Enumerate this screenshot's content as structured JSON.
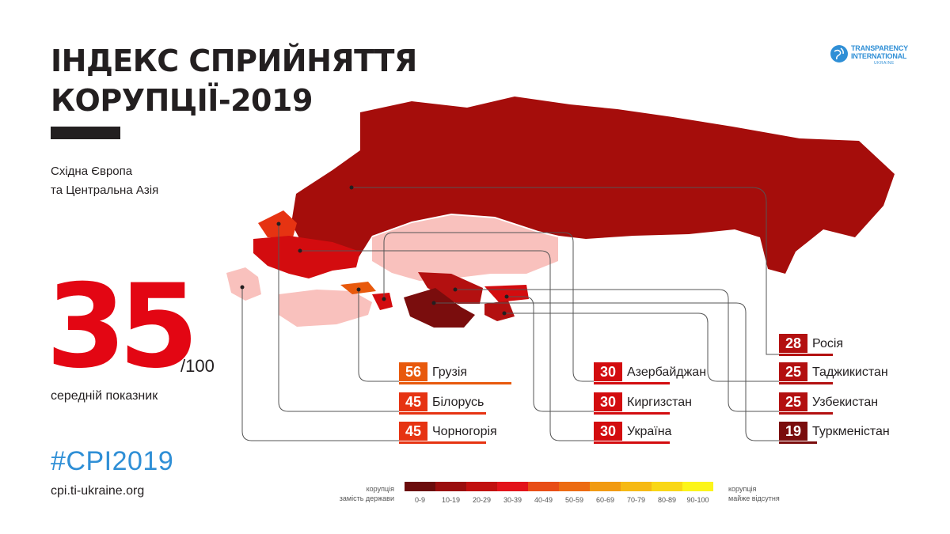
{
  "title": {
    "line1": "ІНДЕКС СПРИЙНЯТТЯ",
    "line2": "КОРУПЦІЇ-2019"
  },
  "region": {
    "line1": "Східна Європа",
    "line2": "та Центральна Азія"
  },
  "average": {
    "score": "35",
    "max": "/100",
    "label": "середній показник"
  },
  "hashtag": "#CPI2019",
  "url": "cpi.ti-ukraine.org",
  "logo": {
    "line1": "TRANSPARENCY",
    "line2": "INTERNATIONAL",
    "line3": "UKRAINE",
    "icon": "globe-icon"
  },
  "colors": {
    "red": "#e30613",
    "dark_red": "#a50d0b",
    "orange": "#e8590c",
    "gray_line": "#555555",
    "light_pink": "#f9c1bd",
    "hashtag_blue": "#2f8fd6"
  },
  "countries": [
    {
      "score": "56",
      "name": "Грузія",
      "color": "#e8590c"
    },
    {
      "score": "45",
      "name": "Білорусь",
      "color": "#e63312"
    },
    {
      "score": "45",
      "name": "Чорногорія",
      "color": "#e63312"
    },
    {
      "score": "30",
      "name": "Азербайджан",
      "color": "#d30c0f"
    },
    {
      "score": "30",
      "name": "Киргизстан",
      "color": "#d30c0f"
    },
    {
      "score": "30",
      "name": "Україна",
      "color": "#d30c0f"
    },
    {
      "score": "28",
      "name": "Росія",
      "color": "#b31010"
    },
    {
      "score": "25",
      "name": "Таджикистан",
      "color": "#b31010"
    },
    {
      "score": "25",
      "name": "Узбекистан",
      "color": "#b31010"
    },
    {
      "score": "19",
      "name": "Туркменістан",
      "color": "#7a0d0d"
    }
  ],
  "legend": {
    "left_line1": "корупція",
    "left_line2": "замість держави",
    "right_line1": "корупція",
    "right_line2": "майже відсутня",
    "ranges": [
      "0-9",
      "10-19",
      "20-29",
      "30-39",
      "40-49",
      "50-59",
      "60-69",
      "70-79",
      "80-89",
      "90-100"
    ],
    "colors": [
      "#6b0c0c",
      "#9a0e0e",
      "#c1100f",
      "#e3131a",
      "#e84d16",
      "#ec6b12",
      "#f19a12",
      "#f6b914",
      "#f9d716",
      "#fcf51a"
    ]
  }
}
